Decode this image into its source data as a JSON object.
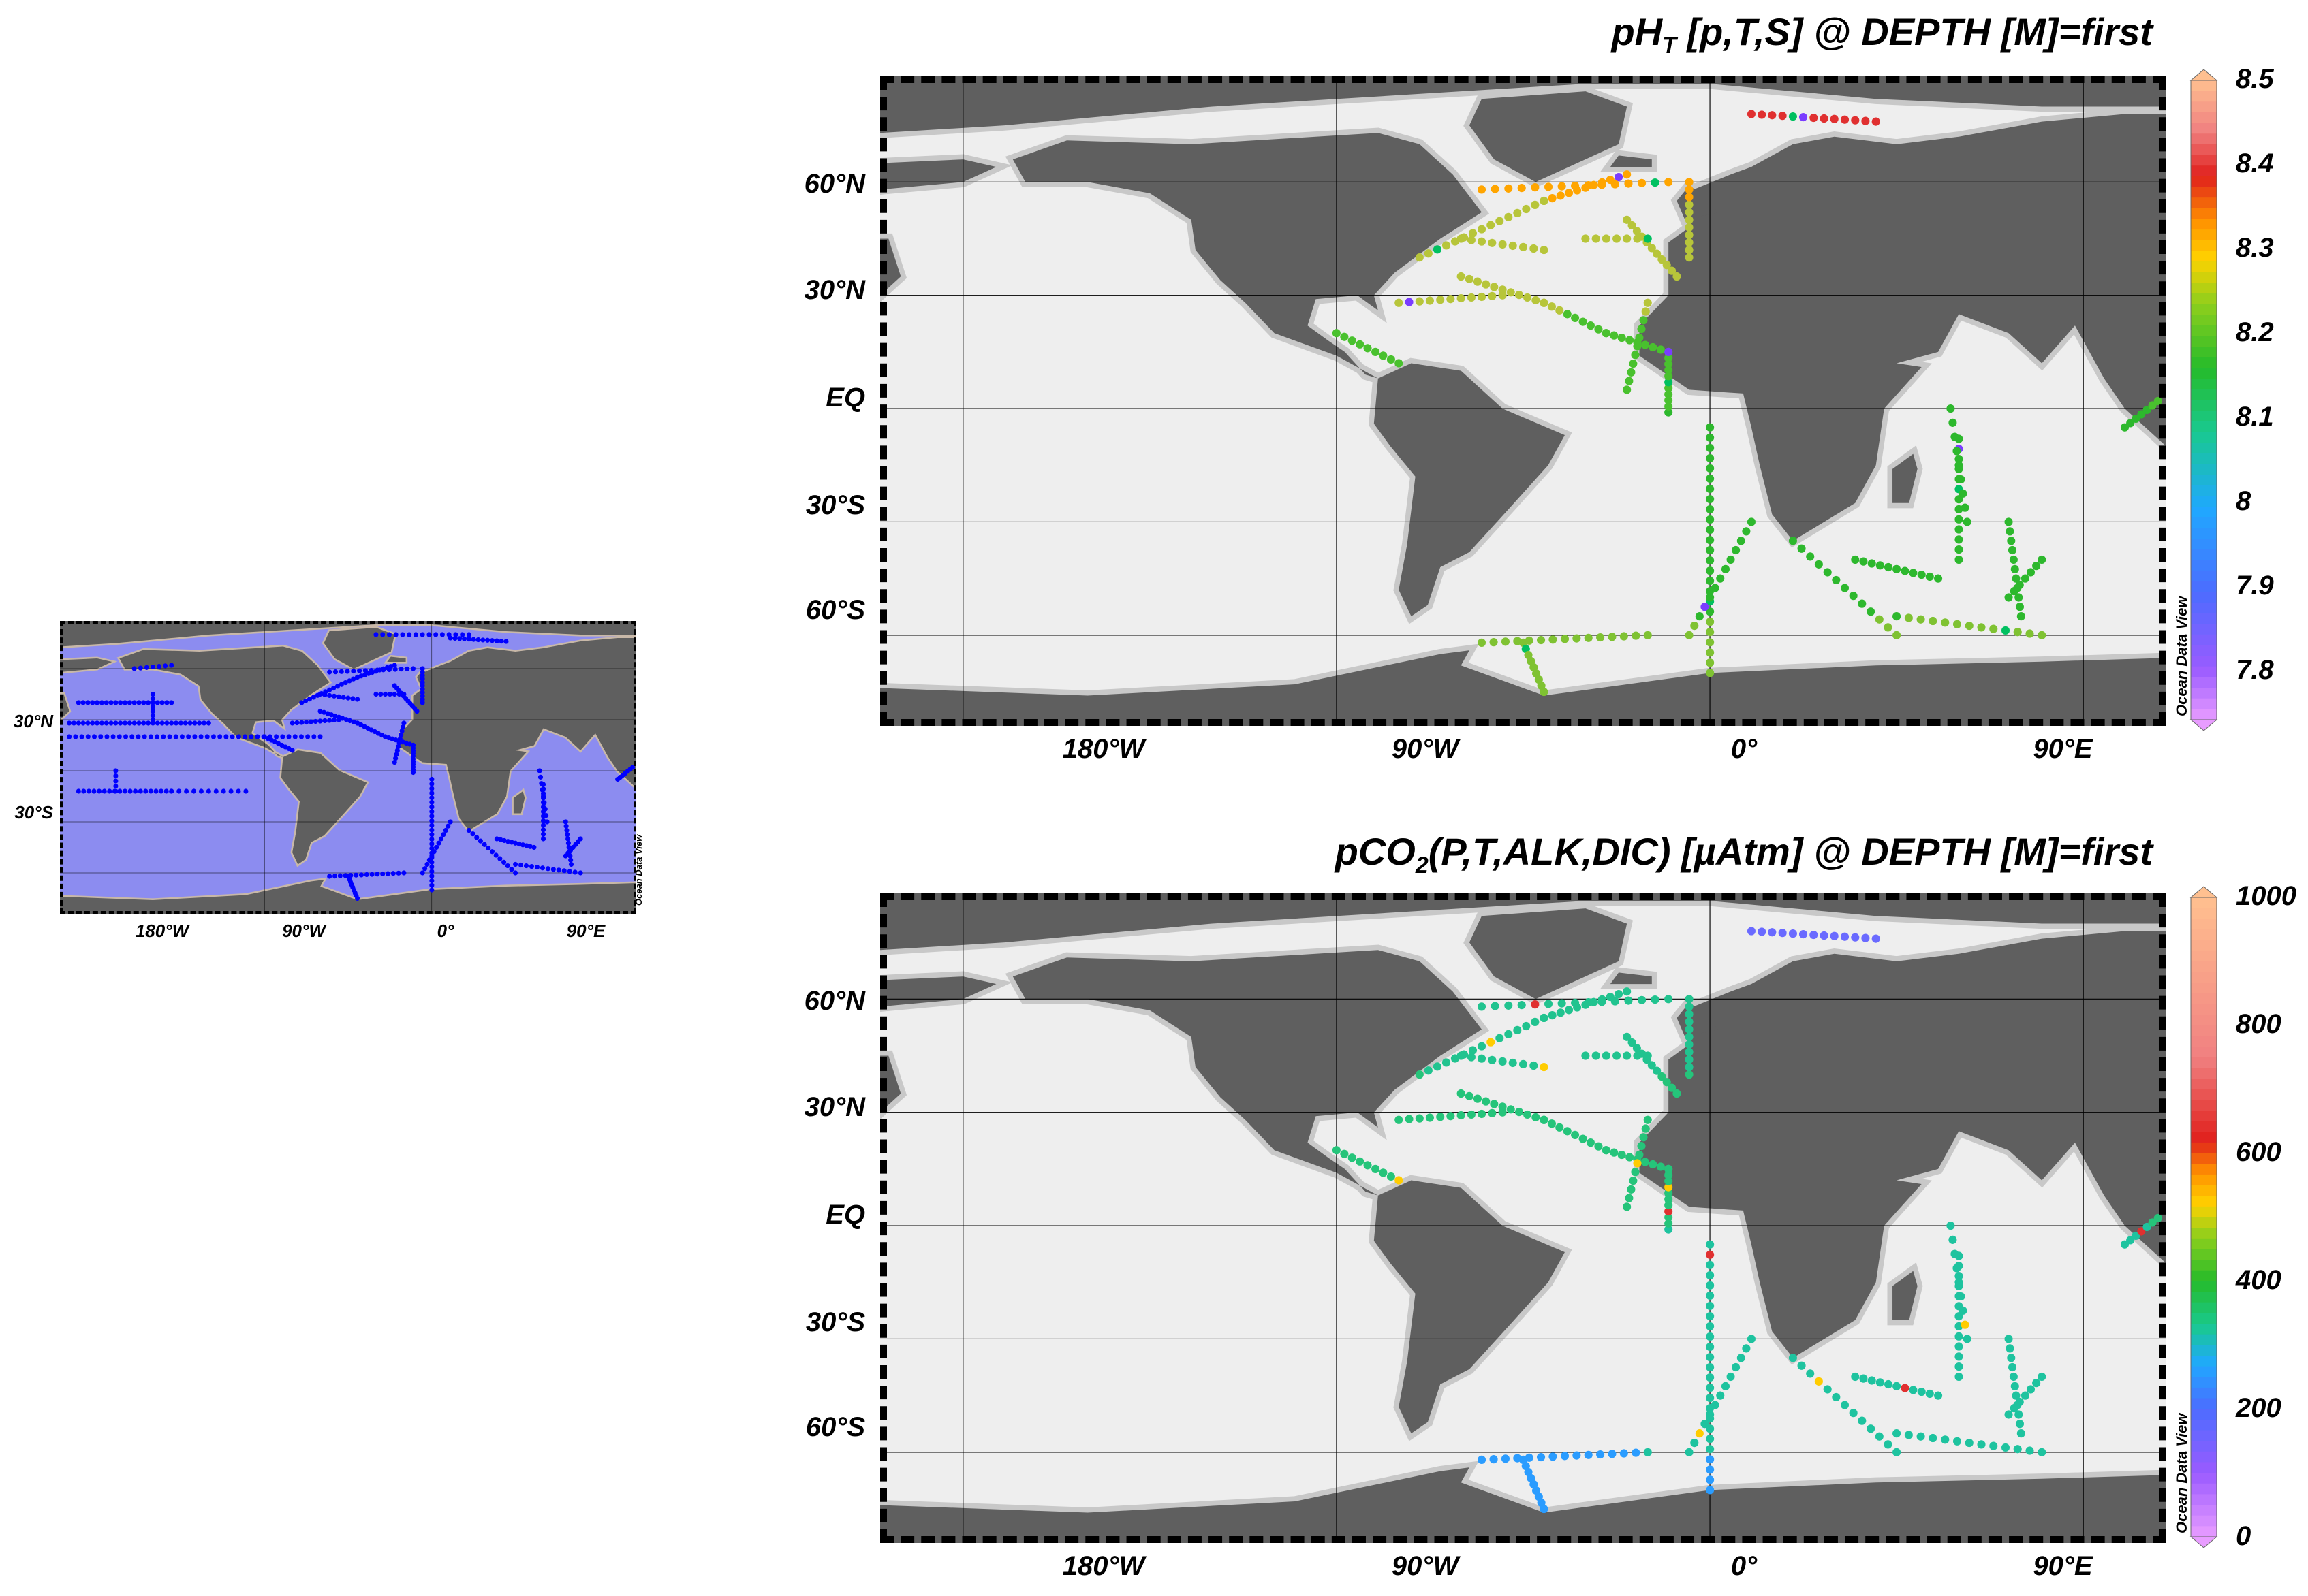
{
  "brand": {
    "watermark": "Ocean Data View"
  },
  "overview": {
    "lat_labels": [
      "30°N",
      "30°S"
    ],
    "lon_labels": [
      "180°W",
      "90°W",
      "0°",
      "90°E"
    ],
    "marker_color": "#0000ff"
  },
  "ph_panel": {
    "title_main": "pH",
    "title_sub": "T",
    "title_rest": " [p,T,S] @ DEPTH [M]=first",
    "lat_labels": [
      "60°N",
      "30°N",
      "EQ",
      "30°S",
      "60°S"
    ],
    "lon_labels": [
      "180°W",
      "90°W",
      "0°",
      "90°E"
    ],
    "colorbar": {
      "min": 7.75,
      "max": 8.5,
      "ticks": [
        "8.5",
        "8.4",
        "8.3",
        "8.2",
        "8.1",
        "8",
        "7.9",
        "7.8"
      ]
    }
  },
  "pco2_panel": {
    "title_main": "pCO",
    "title_sub": "2",
    "title_rest": "(P,T,ALK,DIC) [µAtm] @ DEPTH [M]=first",
    "lat_labels": [
      "60°N",
      "30°N",
      "EQ",
      "30°S",
      "60°S"
    ],
    "lon_labels": [
      "180°W",
      "90°W",
      "0°",
      "90°E"
    ],
    "colorbar": {
      "min": 0,
      "max": 1000,
      "ticks": [
        "1000",
        "800",
        "600",
        "400",
        "200",
        "0"
      ]
    }
  },
  "colors": {
    "land": "#5f5f5f",
    "ocean": "#eeeeee",
    "overview_ocean": "#8c8cf0"
  }
}
